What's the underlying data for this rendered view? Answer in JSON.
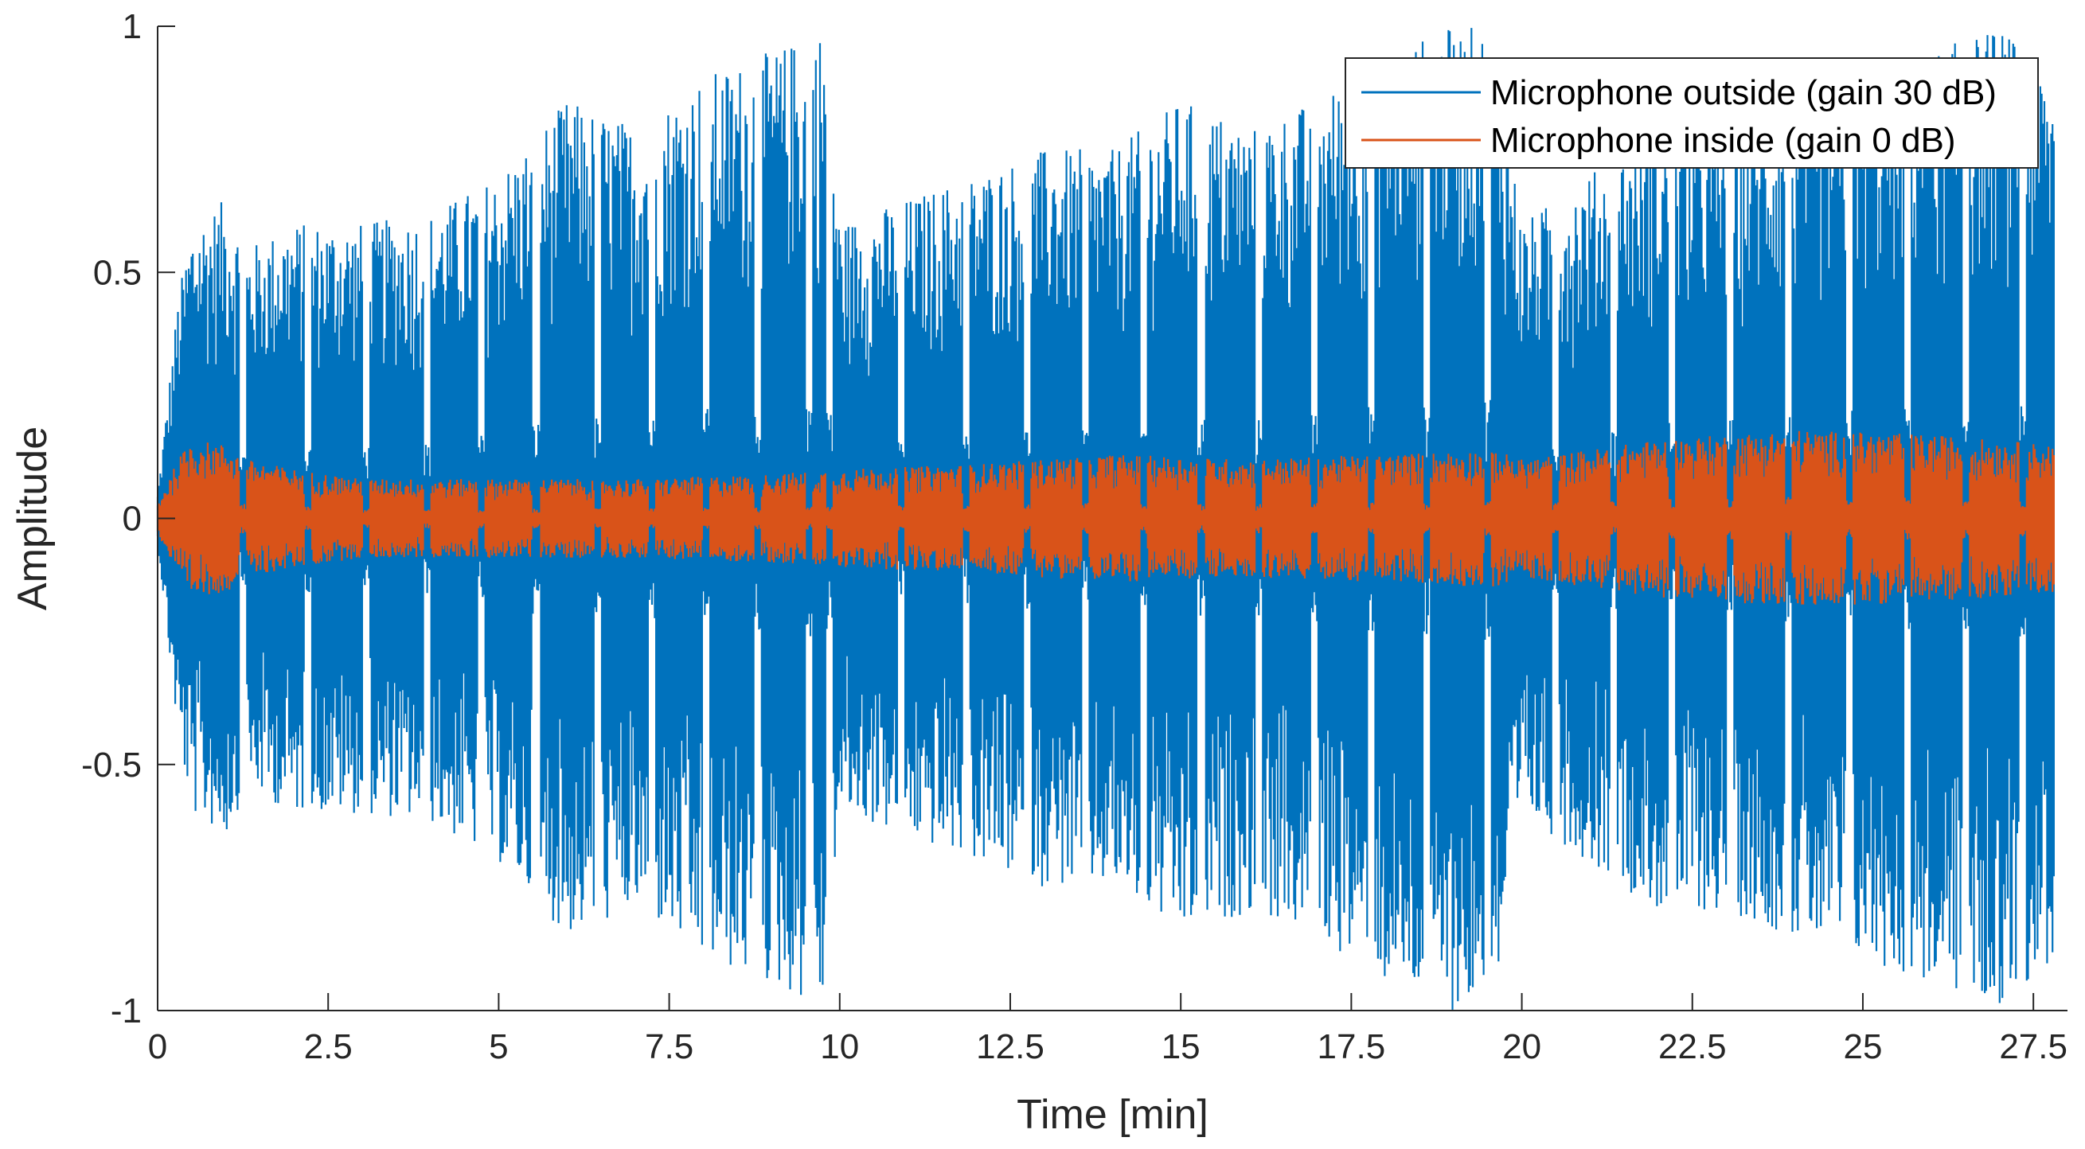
{
  "chart_data": {
    "type": "line",
    "title": "",
    "xlabel": "Time [min]",
    "ylabel": "Amplitude",
    "xlim": [
      0,
      28
    ],
    "ylim": [
      -1,
      1
    ],
    "grid": false,
    "legend_position": "top-right",
    "xticks": [
      0,
      2.5,
      5,
      7.5,
      10,
      12.5,
      15,
      17.5,
      20,
      22.5,
      25,
      27.5
    ],
    "xtick_labels": [
      "0",
      "2.5",
      "5",
      "7.5",
      "10",
      "12.5",
      "15",
      "17.5",
      "20",
      "22.5",
      "25",
      "27.5"
    ],
    "yticks": [
      -1,
      -0.5,
      0,
      0.5,
      1
    ],
    "ytick_labels": [
      "-1",
      "-0.5",
      "0",
      "0.5",
      "1"
    ],
    "series": [
      {
        "name": "Microphone outside (gain 30 dB)",
        "color": "#0072BD",
        "envelope_time_min": [
          0,
          0.3,
          0.5,
          1.0,
          1.3,
          2.0,
          3.0,
          4.0,
          5.0,
          6.0,
          7.0,
          8.0,
          9.0,
          9.8,
          10.0,
          11.0,
          12.0,
          13.0,
          14.0,
          15.0,
          16.0,
          17.0,
          18.0,
          19.0,
          19.6,
          20.0,
          21.0,
          22.0,
          23.0,
          24.0,
          25.0,
          26.0,
          27.0,
          27.8
        ],
        "envelope_amplitude": [
          0.05,
          0.45,
          0.6,
          0.65,
          0.55,
          0.6,
          0.6,
          0.62,
          0.7,
          0.85,
          0.8,
          0.9,
          0.95,
          1.0,
          0.6,
          0.65,
          0.7,
          0.75,
          0.75,
          0.85,
          0.8,
          0.85,
          0.95,
          1.0,
          1.0,
          0.6,
          0.7,
          0.8,
          0.8,
          0.85,
          0.9,
          0.95,
          1.0,
          0.9
        ]
      },
      {
        "name": "Microphone inside (gain 0 dB)",
        "color": "#D95319",
        "envelope_time_min": [
          0,
          0.3,
          0.5,
          1.0,
          1.3,
          2.0,
          3.0,
          5.0,
          7.0,
          9.0,
          10.0,
          12.0,
          14.0,
          16.0,
          18.0,
          19.6,
          20.0,
          22.0,
          24.0,
          26.0,
          27.8
        ],
        "envelope_amplitude": [
          0.03,
          0.12,
          0.16,
          0.15,
          0.12,
          0.1,
          0.08,
          0.08,
          0.08,
          0.09,
          0.1,
          0.11,
          0.13,
          0.12,
          0.13,
          0.14,
          0.12,
          0.16,
          0.18,
          0.17,
          0.15
        ]
      }
    ]
  }
}
